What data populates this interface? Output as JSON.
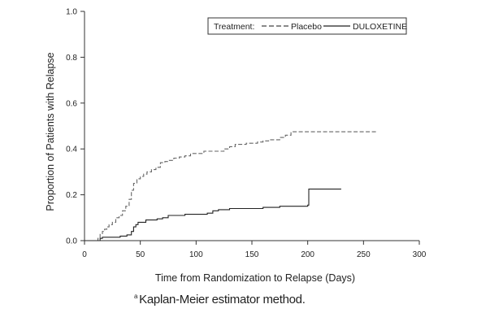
{
  "chart_data": {
    "type": "line",
    "title": "",
    "xlabel": "Time from Randomization to Relapse (Days)",
    "ylabel": "Proportion of Patients with Relapse",
    "xlim": [
      0,
      300
    ],
    "ylim": [
      0,
      1.0
    ],
    "x_ticks": [
      0,
      50,
      100,
      150,
      200,
      250,
      300
    ],
    "x_tick_labels": [
      "0",
      "50",
      "100",
      "150",
      "200",
      "250",
      "300"
    ],
    "y_ticks": [
      0,
      0.2,
      0.4,
      0.6,
      0.8,
      1.0
    ],
    "y_tick_labels": [
      "0.0",
      "0.2",
      "0.4",
      "0.6",
      "0.8",
      "1.0"
    ],
    "grid": false,
    "legend": {
      "placement": "top-right",
      "title": "Treatment:",
      "entries": [
        "Placebo",
        "DULOXETINE"
      ]
    },
    "series": [
      {
        "name": "Placebo",
        "style": "dashed",
        "color": "#666666",
        "points": [
          [
            0,
            0
          ],
          [
            10,
            0
          ],
          [
            12,
            0.01
          ],
          [
            14,
            0.03
          ],
          [
            16,
            0.04
          ],
          [
            18,
            0.05
          ],
          [
            20,
            0.06
          ],
          [
            22,
            0.07
          ],
          [
            25,
            0.08
          ],
          [
            28,
            0.1
          ],
          [
            31,
            0.11
          ],
          [
            34,
            0.13
          ],
          [
            37,
            0.15
          ],
          [
            40,
            0.18
          ],
          [
            42,
            0.22
          ],
          [
            44,
            0.25
          ],
          [
            47,
            0.27
          ],
          [
            50,
            0.28
          ],
          [
            53,
            0.29
          ],
          [
            56,
            0.3
          ],
          [
            60,
            0.31
          ],
          [
            64,
            0.32
          ],
          [
            68,
            0.34
          ],
          [
            72,
            0.345
          ],
          [
            76,
            0.35
          ],
          [
            80,
            0.36
          ],
          [
            85,
            0.365
          ],
          [
            90,
            0.37
          ],
          [
            95,
            0.38
          ],
          [
            100,
            0.38
          ],
          [
            107,
            0.39
          ],
          [
            115,
            0.39
          ],
          [
            125,
            0.4
          ],
          [
            130,
            0.41
          ],
          [
            135,
            0.42
          ],
          [
            145,
            0.425
          ],
          [
            155,
            0.43
          ],
          [
            160,
            0.435
          ],
          [
            165,
            0.44
          ],
          [
            175,
            0.45
          ],
          [
            180,
            0.46
          ],
          [
            185,
            0.475
          ],
          [
            210,
            0.475
          ],
          [
            235,
            0.475
          ],
          [
            262,
            0.475
          ]
        ]
      },
      {
        "name": "DULOXETINE",
        "style": "solid",
        "color": "#222222",
        "points": [
          [
            0,
            0
          ],
          [
            12,
            0
          ],
          [
            14,
            0.01
          ],
          [
            16,
            0.015
          ],
          [
            25,
            0.015
          ],
          [
            32,
            0.02
          ],
          [
            38,
            0.025
          ],
          [
            42,
            0.04
          ],
          [
            44,
            0.06
          ],
          [
            46,
            0.07
          ],
          [
            48,
            0.08
          ],
          [
            55,
            0.09
          ],
          [
            65,
            0.095
          ],
          [
            70,
            0.1
          ],
          [
            75,
            0.11
          ],
          [
            90,
            0.115
          ],
          [
            110,
            0.12
          ],
          [
            115,
            0.13
          ],
          [
            120,
            0.135
          ],
          [
            130,
            0.14
          ],
          [
            150,
            0.14
          ],
          [
            160,
            0.145
          ],
          [
            175,
            0.15
          ],
          [
            190,
            0.15
          ],
          [
            200,
            0.155
          ],
          [
            201,
            0.225
          ],
          [
            230,
            0.225
          ]
        ]
      }
    ]
  },
  "footnote": {
    "marker": "a",
    "text": "Kaplan-Meier estimator method."
  }
}
